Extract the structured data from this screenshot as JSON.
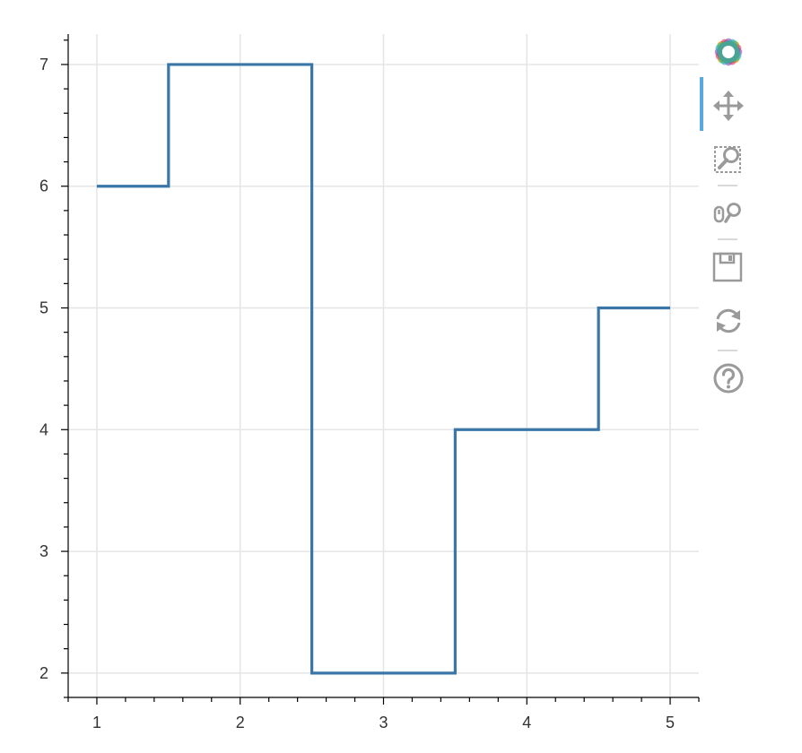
{
  "chart_data": {
    "type": "line",
    "title": "",
    "xlabel": "",
    "ylabel": "",
    "x": [
      1,
      2,
      3,
      4,
      5
    ],
    "series": [
      {
        "mode": "step-center",
        "values": [
          6,
          7,
          2,
          4,
          5
        ],
        "color": "#3a77a8"
      }
    ],
    "xlim": [
      0.8,
      5.2
    ],
    "ylim": [
      1.8,
      7.25
    ],
    "xticks": [
      1,
      2,
      3,
      4,
      5
    ],
    "yticks": [
      2,
      3,
      4,
      5,
      6,
      7
    ],
    "grid": true
  },
  "toolbar": {
    "tools": [
      {
        "name": "bokeh-logo",
        "active": false
      },
      {
        "name": "pan-tool",
        "active": true
      },
      {
        "name": "box-zoom-tool",
        "active": false
      },
      {
        "name": "wheel-zoom-tool",
        "active": false
      },
      {
        "name": "save-tool",
        "active": false
      },
      {
        "name": "reset-tool",
        "active": false
      },
      {
        "name": "help-tool",
        "active": false
      }
    ]
  }
}
